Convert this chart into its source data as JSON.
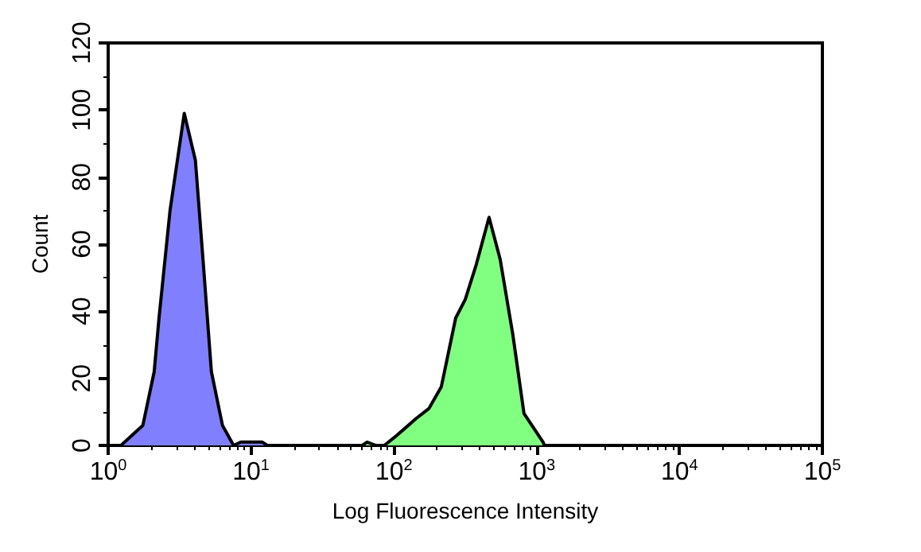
{
  "chart_data": {
    "type": "area",
    "xlabel": "Log Fluorescence Intensity",
    "ylabel": "Count",
    "log": "x",
    "xlim": [
      1,
      100000
    ],
    "xticks": [
      {
        "value": 1,
        "label": "10$^{0}$"
      },
      {
        "value": 10,
        "label": "10$^{1}$"
      },
      {
        "value": 100,
        "label": "10$^{2}$"
      },
      {
        "value": 1000,
        "label": "10$^{3}$"
      },
      {
        "value": 10000,
        "label": "10$^{4}$"
      },
      {
        "value": 100000,
        "label": "10$^{5}$"
      }
    ],
    "ylim": [
      0,
      120
    ],
    "yticks": [
      0,
      20,
      40,
      60,
      80,
      100,
      120
    ],
    "grid": false,
    "marker": "none",
    "line_style": "solid",
    "series": [
      {
        "color": "#8080ff",
        "x": [
          1.23,
          1.75,
          2.1,
          2.27,
          2.71,
          3.41,
          4.08,
          4.64,
          5.28,
          6.31,
          7.55,
          8.5,
          12,
          13
        ],
        "values": [
          0,
          6,
          22,
          38,
          70,
          99,
          85,
          54,
          22,
          6,
          0,
          1,
          1,
          0
        ]
      },
      {
        "color": "#80ff80",
        "x": [
          60,
          65,
          75,
          85.8,
          105,
          143,
          176,
          215,
          271,
          316,
          378,
          464,
          555,
          681,
          815,
          1108,
          1130
        ],
        "values": [
          0,
          1,
          0,
          0,
          3,
          8,
          11,
          17.5,
          38,
          43.5,
          54,
          68,
          55.5,
          33,
          9.5,
          1,
          0
        ]
      }
    ]
  }
}
